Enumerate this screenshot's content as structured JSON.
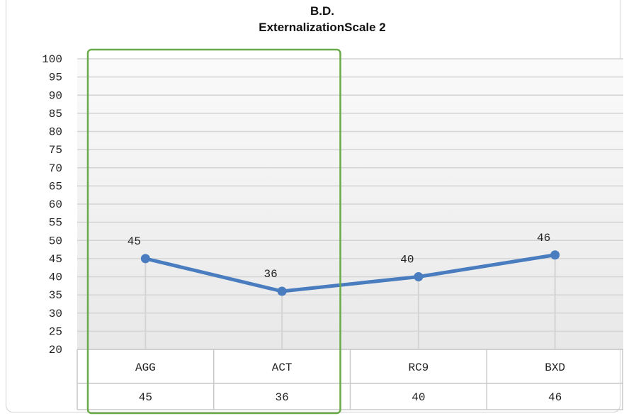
{
  "chart_data": {
    "type": "line",
    "title": "B.D.",
    "subtitle": "ExternalizationScale 2",
    "categories": [
      "AGG",
      "ACT",
      "RC9",
      "BXD"
    ],
    "series": [
      {
        "values": [
          45,
          36,
          40,
          46
        ]
      }
    ],
    "ylim": [
      20,
      100
    ],
    "ytick_step": 5,
    "data_table": true,
    "grid": true,
    "highlight_categories": [
      "AGG",
      "ACT"
    ],
    "colors": {
      "line": "#4a7dbf",
      "highlight_box": "#6aaa4a",
      "grid": "#d4d4d4",
      "plot_bg_top": "#fafafa",
      "plot_bg_bottom": "#e8e8e8"
    }
  }
}
